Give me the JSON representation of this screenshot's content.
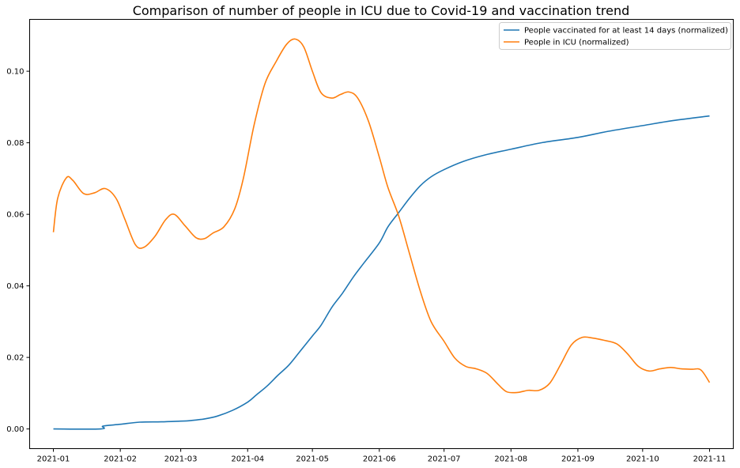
{
  "chart_data": {
    "type": "line",
    "title": "Comparison of number of people in ICU due to Covid-19 and vaccination trend",
    "xlabel": "",
    "ylabel": "",
    "xlim": [
      "2020-12-21",
      "2021-11-12"
    ],
    "ylim": [
      -0.0055,
      0.1145
    ],
    "x_ticks": [
      "2021-01-01",
      "2021-02-01",
      "2021-03-01",
      "2021-04-01",
      "2021-05-01",
      "2021-06-01",
      "2021-07-01",
      "2021-08-01",
      "2021-09-01",
      "2021-10-01",
      "2021-11-01"
    ],
    "x_tick_labels": [
      "2021-01",
      "2021-02",
      "2021-03",
      "2021-04",
      "2021-05",
      "2021-06",
      "2021-07",
      "2021-08",
      "2021-09",
      "2021-10",
      "2021-11"
    ],
    "y_ticks": [
      0.0,
      0.02,
      0.04,
      0.06,
      0.08,
      0.1
    ],
    "y_tick_labels": [
      "0.00",
      "0.02",
      "0.04",
      "0.06",
      "0.08",
      "0.10"
    ],
    "grid": false,
    "legend_position": "top-right",
    "series": [
      {
        "name": "People vaccinated for at least 14 days (normalized)",
        "color": "#1f77b4",
        "points": [
          [
            "2021-01-01",
            0.0
          ],
          [
            "2021-01-23",
            0.0
          ],
          [
            "2021-01-24",
            0.0008
          ],
          [
            "2021-02-01",
            0.0013
          ],
          [
            "2021-02-10",
            0.0019
          ],
          [
            "2021-02-20",
            0.002
          ],
          [
            "2021-03-01",
            0.0022
          ],
          [
            "2021-03-05",
            0.0023
          ],
          [
            "2021-03-12",
            0.0028
          ],
          [
            "2021-03-18",
            0.0036
          ],
          [
            "2021-03-25",
            0.0052
          ],
          [
            "2021-04-01",
            0.0075
          ],
          [
            "2021-04-05",
            0.0095
          ],
          [
            "2021-04-10",
            0.012
          ],
          [
            "2021-04-15",
            0.015
          ],
          [
            "2021-04-20",
            0.0178
          ],
          [
            "2021-04-25",
            0.0215
          ],
          [
            "2021-05-01",
            0.026
          ],
          [
            "2021-05-05",
            0.029
          ],
          [
            "2021-05-10",
            0.034
          ],
          [
            "2021-05-15",
            0.038
          ],
          [
            "2021-05-20",
            0.0425
          ],
          [
            "2021-05-25",
            0.0465
          ],
          [
            "2021-06-01",
            0.052
          ],
          [
            "2021-06-05",
            0.0565
          ],
          [
            "2021-06-10",
            0.0605
          ],
          [
            "2021-06-15",
            0.0645
          ],
          [
            "2021-06-20",
            0.068
          ],
          [
            "2021-06-25",
            0.0705
          ],
          [
            "2021-07-01",
            0.0725
          ],
          [
            "2021-07-10",
            0.0748
          ],
          [
            "2021-07-20",
            0.0766
          ],
          [
            "2021-08-01",
            0.0782
          ],
          [
            "2021-08-15",
            0.08
          ],
          [
            "2021-09-01",
            0.0815
          ],
          [
            "2021-09-15",
            0.0832
          ],
          [
            "2021-10-01",
            0.0848
          ],
          [
            "2021-10-15",
            0.0862
          ],
          [
            "2021-11-01",
            0.0875
          ]
        ]
      },
      {
        "name": "People in ICU (normalized)",
        "color": "#ff7f0e",
        "points": [
          [
            "2021-01-01",
            0.055
          ],
          [
            "2021-01-03",
            0.0645
          ],
          [
            "2021-01-07",
            0.0702
          ],
          [
            "2021-01-10",
            0.0695
          ],
          [
            "2021-01-15",
            0.0658
          ],
          [
            "2021-01-20",
            0.066
          ],
          [
            "2021-01-25",
            0.0672
          ],
          [
            "2021-01-30",
            0.0645
          ],
          [
            "2021-02-03",
            0.0588
          ],
          [
            "2021-02-08",
            0.0515
          ],
          [
            "2021-02-12",
            0.0508
          ],
          [
            "2021-02-17",
            0.0538
          ],
          [
            "2021-02-22",
            0.0585
          ],
          [
            "2021-02-26",
            0.06
          ],
          [
            "2021-03-03",
            0.0568
          ],
          [
            "2021-03-08",
            0.0535
          ],
          [
            "2021-03-12",
            0.0532
          ],
          [
            "2021-03-16",
            0.0548
          ],
          [
            "2021-03-21",
            0.0565
          ],
          [
            "2021-03-26",
            0.0615
          ],
          [
            "2021-03-30",
            0.07
          ],
          [
            "2021-04-04",
            0.085
          ],
          [
            "2021-04-09",
            0.0965
          ],
          [
            "2021-04-14",
            0.1025
          ],
          [
            "2021-04-19",
            0.1075
          ],
          [
            "2021-04-23",
            0.109
          ],
          [
            "2021-04-27",
            0.1068
          ],
          [
            "2021-05-01",
            0.1
          ],
          [
            "2021-05-05",
            0.094
          ],
          [
            "2021-05-10",
            0.0925
          ],
          [
            "2021-05-14",
            0.0935
          ],
          [
            "2021-05-18",
            0.0942
          ],
          [
            "2021-05-22",
            0.0925
          ],
          [
            "2021-05-27",
            0.086
          ],
          [
            "2021-06-01",
            0.076
          ],
          [
            "2021-06-05",
            0.0675
          ],
          [
            "2021-06-10",
            0.0595
          ],
          [
            "2021-06-15",
            0.049
          ],
          [
            "2021-06-20",
            0.0385
          ],
          [
            "2021-06-25",
            0.03
          ],
          [
            "2021-07-01",
            0.0245
          ],
          [
            "2021-07-06",
            0.0198
          ],
          [
            "2021-07-11",
            0.0175
          ],
          [
            "2021-07-16",
            0.0168
          ],
          [
            "2021-07-21",
            0.0155
          ],
          [
            "2021-07-26",
            0.0125
          ],
          [
            "2021-07-30",
            0.0104
          ],
          [
            "2021-08-04",
            0.0102
          ],
          [
            "2021-08-09",
            0.0108
          ],
          [
            "2021-08-14",
            0.0108
          ],
          [
            "2021-08-19",
            0.0128
          ],
          [
            "2021-08-24",
            0.018
          ],
          [
            "2021-08-29",
            0.0235
          ],
          [
            "2021-09-03",
            0.0256
          ],
          [
            "2021-09-08",
            0.0254
          ],
          [
            "2021-09-13",
            0.0248
          ],
          [
            "2021-09-19",
            0.0238
          ],
          [
            "2021-09-24",
            0.021
          ],
          [
            "2021-09-29",
            0.0175
          ],
          [
            "2021-10-04",
            0.0162
          ],
          [
            "2021-10-09",
            0.0168
          ],
          [
            "2021-10-14",
            0.0172
          ],
          [
            "2021-10-19",
            0.0168
          ],
          [
            "2021-10-24",
            0.0167
          ],
          [
            "2021-10-28",
            0.0165
          ],
          [
            "2021-11-01",
            0.013
          ]
        ]
      }
    ]
  }
}
